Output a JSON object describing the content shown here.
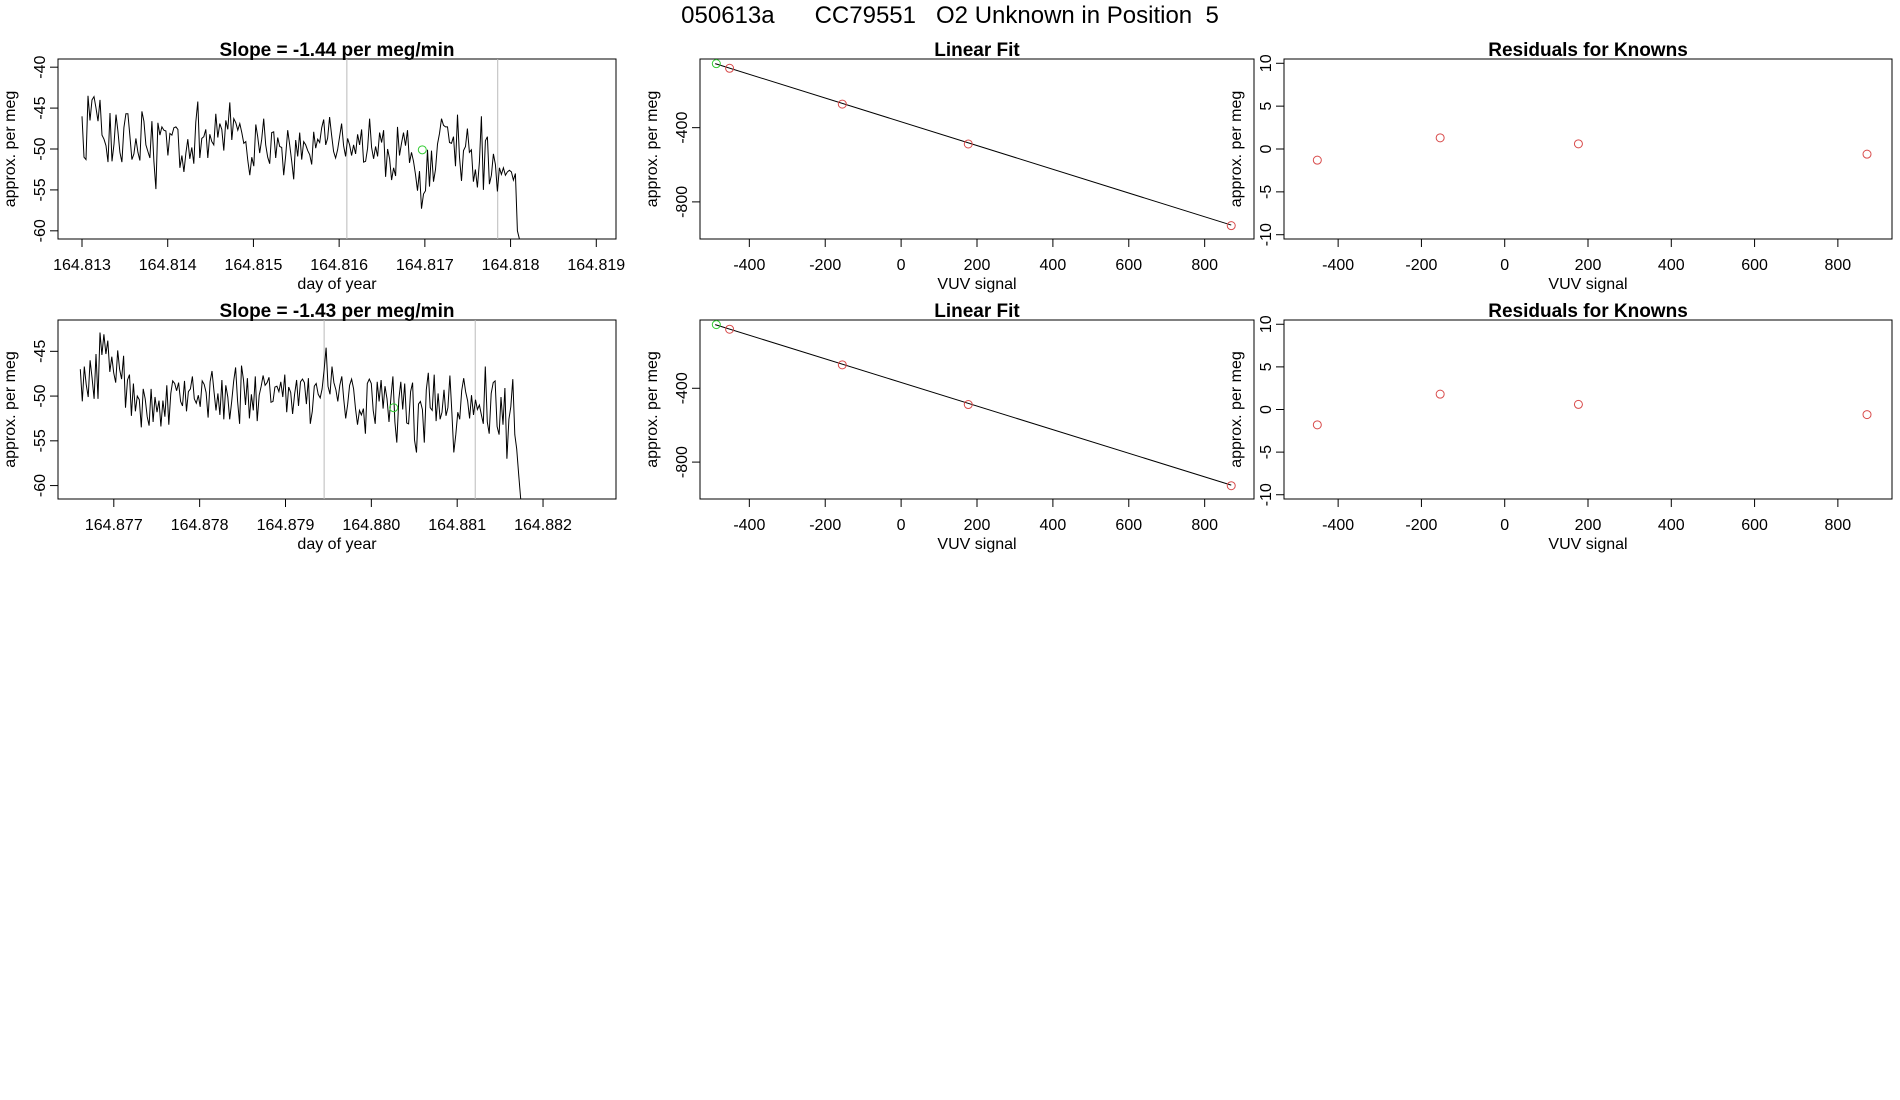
{
  "main_title": "050613a      CC79551   O2 Unknown in Position  5",
  "chart_data": [
    {
      "type": "line",
      "title": "Slope =  -1.44  per meg/min",
      "xlabel": "day of year",
      "ylabel": "approx. per meg",
      "xlim": [
        164.81272,
        164.81923
      ],
      "ylim": [
        -61,
        -39
      ],
      "xticks": [
        "164.813",
        "164.814",
        "164.815",
        "164.816",
        "164.817",
        "164.818",
        "164.819"
      ],
      "yticks": [
        "-60",
        "-55",
        "-50",
        "-45",
        "-40"
      ],
      "vlines": [
        164.81609,
        164.81785
      ],
      "x_start": 164.813,
      "x_step": 2.33e-05,
      "values": [
        -46,
        -51,
        -51.3,
        -43.5,
        -46.5,
        -44,
        -43.6,
        -45,
        -46.6,
        -44,
        -48.3,
        -48.8,
        -49.6,
        -51.6,
        -45.6,
        -51.5,
        -49.4,
        -45.8,
        -47.8,
        -50.4,
        -51.6,
        -47.4,
        -45.7,
        -45.7,
        -48.4,
        -51.3,
        -50.6,
        -48.7,
        -50.4,
        -51.4,
        -45.4,
        -46.6,
        -49.5,
        -50.3,
        -51.1,
        -46.6,
        -51.5,
        -54.9,
        -46.8,
        -48.3,
        -47.3,
        -47.7,
        -47.8,
        -50.8,
        -48.1,
        -48.3,
        -47.4,
        -47.3,
        -47.6,
        -52.3,
        -50.8,
        -52.8,
        -50.5,
        -48.8,
        -51.2,
        -49.8,
        -51.8,
        -46.7,
        -44.2,
        -51.1,
        -48.7,
        -48.5,
        -47.6,
        -51.1,
        -48.2,
        -49.1,
        -49.5,
        -45.7,
        -48.6,
        -46.9,
        -47.6,
        -50.2,
        -46.5,
        -47.6,
        -44.3,
        -48.9,
        -46.3,
        -46.8,
        -47.7,
        -46.9,
        -48,
        -49.3,
        -49.1,
        -51.4,
        -53.2,
        -51,
        -52.1,
        -47,
        -48.5,
        -50.5,
        -48.8,
        -46.3,
        -49.5,
        -51,
        -51.8,
        -48,
        -47.9,
        -51.1,
        -48.6,
        -49.7,
        -49.8,
        -53.2,
        -50.8,
        -47.7,
        -49.5,
        -51.5,
        -53.7,
        -48.9,
        -50.9,
        -48,
        -51.3,
        -49.1,
        -49.5,
        -50.2,
        -50.7,
        -51.9,
        -47.9,
        -49.9,
        -48.8,
        -49.2,
        -47.4,
        -46.4,
        -49.5,
        -48.7,
        -46.1,
        -48.3,
        -50.3,
        -51.1,
        -50.1,
        -48.5,
        -46.9,
        -49.6,
        -50.9,
        -48.7,
        -49.5,
        -50.8,
        -49.5,
        -50.6,
        -48.2,
        -49.5,
        -47.6,
        -51.6,
        -51.5,
        -49.9,
        -46.3,
        -49.8,
        -51.2,
        -49.7,
        -50.9,
        -48,
        -49.2,
        -47.7,
        -53.4,
        -50,
        -51.2,
        -53.8,
        -52.3,
        -53.3,
        -47.3,
        -50.8,
        -49.3,
        -48,
        -49.6,
        -47.7,
        -51.7,
        -50.4,
        -51.5,
        -53.1,
        -55.1,
        -52.7,
        -57.3,
        -55.5,
        -55.1,
        -50.1,
        -54.6,
        -50.2,
        -54,
        -52.5,
        -49.4,
        -48.1,
        -46.3,
        -47.1,
        -47.3,
        -47.3,
        -49.2,
        -49.3,
        -48.5,
        -52.1,
        -45.8,
        -51,
        -53.9,
        -50.2,
        -49.7,
        -47.5,
        -50.4,
        -50.1,
        -54,
        -52.5,
        -54.7,
        -51.6,
        -46,
        -55,
        -49,
        -48.5,
        -54.3,
        -53.2,
        -50.6,
        -51.9,
        -55.2,
        -52.3,
        -53.1,
        -52.3,
        -53.2,
        -52.8,
        -52.6,
        -52.8,
        -53.8,
        -53,
        -60,
        -61
      ],
      "highlight_points": [
        {
          "x": 164.81697,
          "y": -50.1
        }
      ]
    },
    {
      "type": "scatter",
      "title": "Linear Fit",
      "xlabel": "VUV signal",
      "ylabel": "approx. per meg",
      "xlim": [
        -530,
        930
      ],
      "ylim": [
        -1000,
        -30
      ],
      "xticks": [
        -400,
        -200,
        0,
        200,
        400,
        600,
        800
      ],
      "yticks": [
        -800,
        -400
      ],
      "fit_line": [
        [
          -490,
          -55
        ],
        [
          870,
          -925
        ]
      ],
      "knowns": [
        [
          -452,
          -80
        ],
        [
          -155,
          -273
        ],
        [
          177,
          -488
        ],
        [
          870,
          -928
        ]
      ],
      "unknowns": [
        [
          -487,
          -55
        ]
      ]
    },
    {
      "type": "scatter",
      "title": "Residuals for Knowns",
      "xlabel": "VUV signal",
      "ylabel": "approx. per meg",
      "xlim": [
        -530,
        930
      ],
      "ylim": [
        -10.5,
        10.5
      ],
      "xticks": [
        -400,
        -200,
        0,
        200,
        400,
        600,
        800
      ],
      "yticks": [
        -10,
        -5,
        0,
        5,
        10
      ],
      "points": [
        [
          -450,
          -1.3
        ],
        [
          -155,
          1.3
        ],
        [
          177,
          0.6
        ],
        [
          870,
          -0.6
        ]
      ]
    },
    {
      "type": "line",
      "title": "Slope =  -1.43  per meg/min",
      "xlabel": "day of year",
      "ylabel": "approx. per meg",
      "xlim": [
        164.87635,
        164.88285
      ],
      "ylim": [
        -61.5,
        -41.5
      ],
      "xticks": [
        "164.877",
        "164.878",
        "164.879",
        "164.880",
        "164.881",
        "164.882"
      ],
      "yticks": [
        "-60",
        "-55",
        "-50",
        "-45"
      ],
      "vlines": [
        164.87945,
        164.88121
      ],
      "x_start": 164.87661,
      "x_step": 2.29e-05,
      "values": [
        -47,
        -50.6,
        -46.7,
        -48.7,
        -50.1,
        -46,
        -48,
        -50.3,
        -45.3,
        -50.3,
        -42.9,
        -45.4,
        -43.1,
        -45.3,
        -43.8,
        -47.3,
        -45.6,
        -47.4,
        -48.5,
        -44.9,
        -47,
        -48.1,
        -45.5,
        -51.3,
        -48.2,
        -47.6,
        -52.2,
        -48.6,
        -51.7,
        -50,
        -50.4,
        -53.5,
        -49.2,
        -50.3,
        -52.3,
        -53.3,
        -49.2,
        -52.9,
        -50.1,
        -51.8,
        -50.5,
        -53.4,
        -50.5,
        -52.3,
        -48.8,
        -53.2,
        -49.7,
        -48.3,
        -48.6,
        -49.4,
        -48.5,
        -50.6,
        -51.1,
        -48.3,
        -51.7,
        -49.5,
        -49.2,
        -47.8,
        -50.3,
        -50.8,
        -49.9,
        -51.2,
        -48.3,
        -48.7,
        -49.6,
        -52.4,
        -48.4,
        -47.2,
        -49.5,
        -51.6,
        -49.7,
        -52.1,
        -48.2,
        -52.6,
        -48.8,
        -50.1,
        -52.6,
        -50.6,
        -48.3,
        -46.8,
        -50.6,
        -53.1,
        -46.6,
        -48.2,
        -51,
        -48,
        -52.5,
        -49.8,
        -51.6,
        -47.8,
        -52.8,
        -49.9,
        -48.9,
        -47.7,
        -48.8,
        -48.5,
        -47.9,
        -50.7,
        -50.6,
        -49,
        -48.9,
        -49.5,
        -48.4,
        -50.1,
        -47.6,
        -51.8,
        -49,
        -49.6,
        -52,
        -49.8,
        -48.2,
        -51.1,
        -48.4,
        -48.1,
        -48.5,
        -50.9,
        -48,
        -53.1,
        -51.7,
        -48.9,
        -48.6,
        -49.8,
        -50.2,
        -49.2,
        -47.1,
        -44.6,
        -48.9,
        -49.8,
        -46.7,
        -48.5,
        -49.3,
        -50.6,
        -48.8,
        -47.8,
        -50.3,
        -52.5,
        -50.9,
        -48.8,
        -48.1,
        -49.2,
        -51.4,
        -53.2,
        -51.6,
        -52.1,
        -51.4,
        -54.2,
        -48.6,
        -48.1,
        -48.6,
        -51.6,
        -53.1,
        -48.4,
        -50.6,
        -48.2,
        -51.4,
        -48.9,
        -50.3,
        -52.9,
        -50.2,
        -47.8,
        -52.9,
        -55.2,
        -50.4,
        -48.4,
        -51.5,
        -48.6,
        -53,
        -53.1,
        -49.5,
        -48.5,
        -54.9,
        -56.3,
        -50.9,
        -50.6,
        -51.5,
        -55.2,
        -49.3,
        -47.4,
        -51.3,
        -51.6,
        -47.6,
        -52.8,
        -49.7,
        -52.6,
        -51.8,
        -49.3,
        -52.2,
        -51.3,
        -47.7,
        -51.9,
        -56.3,
        -54.3,
        -51.8,
        -52.6,
        -49.4,
        -48,
        -49.5,
        -50.5,
        -52.5,
        -49.9,
        -52.1,
        -50.4,
        -51.5,
        -51,
        -52.1,
        -53.1,
        -46.7,
        -52.9,
        -54.2,
        -49.7,
        -48.5,
        -48.3,
        -53.4,
        -54.3,
        -50.1,
        -53.2,
        -49.1,
        -57,
        -52.6,
        -51.2,
        -48.1,
        -54.3,
        -55.9,
        -58.8,
        -61.5
      ],
      "highlight_points": [
        {
          "x": 164.88026,
          "y": -51.3
        }
      ]
    },
    {
      "type": "scatter",
      "title": "Linear Fit",
      "xlabel": "VUV signal",
      "ylabel": "approx. per meg",
      "xlim": [
        -530,
        930
      ],
      "ylim": [
        -1000,
        -30
      ],
      "xticks": [
        -400,
        -200,
        0,
        200,
        400,
        600,
        800
      ],
      "yticks": [
        -800,
        -400
      ],
      "fit_line": [
        [
          -490,
          -55
        ],
        [
          870,
          -925
        ]
      ],
      "knowns": [
        [
          -452,
          -80
        ],
        [
          -155,
          -273
        ],
        [
          177,
          -488
        ],
        [
          870,
          -928
        ]
      ],
      "unknowns": [
        [
          -487,
          -55
        ]
      ]
    },
    {
      "type": "scatter",
      "title": "Residuals for Knowns",
      "xlabel": "VUV signal",
      "ylabel": "approx. per meg",
      "xlim": [
        -530,
        930
      ],
      "ylim": [
        -10.5,
        10.5
      ],
      "xticks": [
        -400,
        -200,
        0,
        200,
        400,
        600,
        800
      ],
      "yticks": [
        -10,
        -5,
        0,
        5,
        10
      ],
      "points": [
        [
          -450,
          -1.8
        ],
        [
          -155,
          1.8
        ],
        [
          177,
          0.6
        ],
        [
          870,
          -0.6
        ]
      ]
    }
  ],
  "colors": {
    "known": "#d84a4a",
    "unknown": "#33cc33",
    "grid_vline": "#bbbbbb",
    "line": "#000000"
  }
}
